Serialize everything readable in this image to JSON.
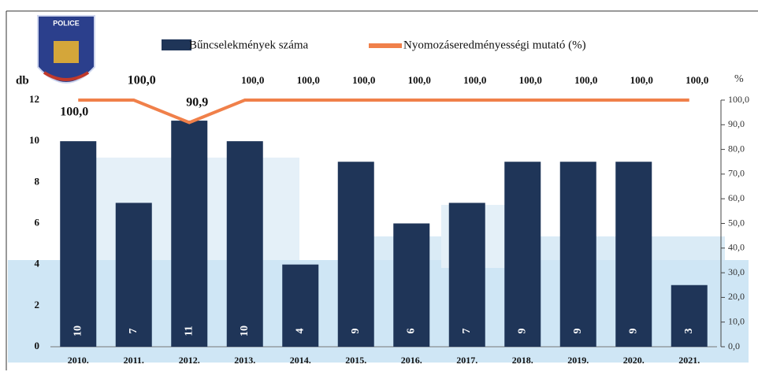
{
  "logo_text": "POLICE",
  "chart_data": {
    "type": "combo",
    "categories": [
      "2010.",
      "2011.",
      "2012.",
      "2013.",
      "2014.",
      "2015.",
      "2016.",
      "2017.",
      "2018.",
      "2019.",
      "2020.",
      "2021."
    ],
    "series": [
      {
        "name": "Bűncselekmények száma",
        "type": "bar",
        "color": "#1f3558",
        "values": [
          10,
          7,
          11,
          10,
          4,
          9,
          6,
          7,
          9,
          9,
          9,
          3
        ]
      },
      {
        "name": "Nyomozáseredményességi mutató (%)",
        "type": "line",
        "axis": "y2",
        "color": "#f0804a",
        "values": [
          100,
          100,
          90.9,
          100,
          100,
          100,
          100,
          100,
          100,
          100,
          100,
          100
        ],
        "value_labels": [
          "100,0",
          "100,0",
          "90,9",
          "100,0",
          "100,0",
          "100,0",
          "100,0",
          "100,0",
          "100,0",
          "100,0",
          "100,0",
          "100,0"
        ]
      }
    ],
    "y_label": "db",
    "y2_label": "%",
    "ylim": [
      0,
      12
    ],
    "yticks": [
      0,
      2,
      4,
      6,
      8,
      10,
      12
    ],
    "y2lim": [
      0,
      100
    ],
    "y2ticks": [
      {
        "value": 0,
        "label": "0,0"
      },
      {
        "value": 10,
        "label": "10,0"
      },
      {
        "value": 20,
        "label": "20,0"
      },
      {
        "value": 30,
        "label": "30,0"
      },
      {
        "value": 40,
        "label": "40,0"
      },
      {
        "value": 50,
        "label": "50,0"
      },
      {
        "value": 60,
        "label": "60,0"
      },
      {
        "value": 70,
        "label": "70,0"
      },
      {
        "value": 80,
        "label": "80,0"
      },
      {
        "value": 90,
        "label": "90,0"
      },
      {
        "value": 100,
        "label": "100,0"
      }
    ],
    "legend": "top"
  }
}
